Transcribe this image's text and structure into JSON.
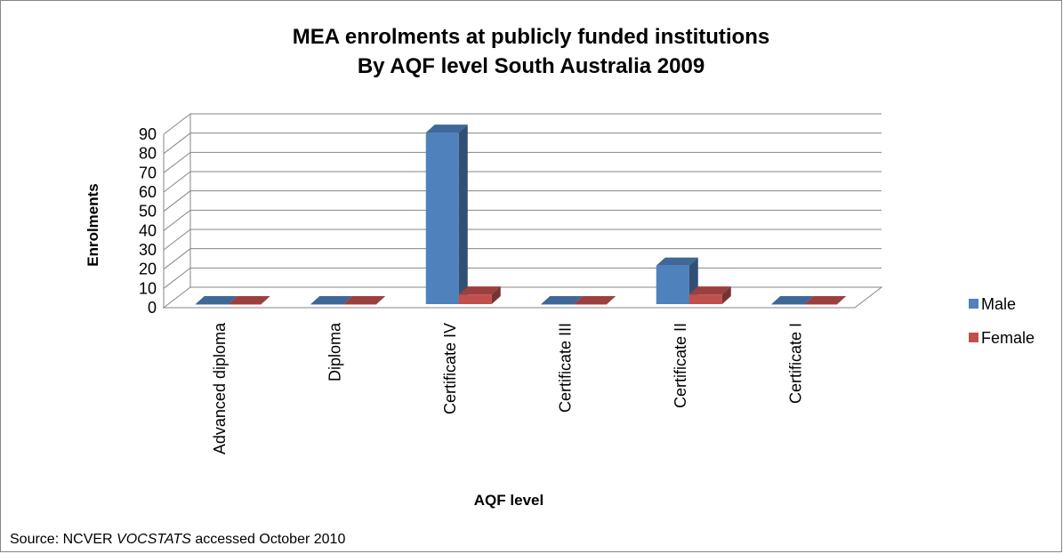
{
  "chart_data": {
    "type": "bar",
    "title_lines": [
      "MEA enrolments at publicly funded institutions",
      "By AQF level South Australia 2009"
    ],
    "xlabel": "AQF level",
    "ylabel": "Enrolments",
    "ylim": [
      0,
      90
    ],
    "yticks": [
      "0",
      "10",
      "20",
      "30",
      "40",
      "50",
      "60",
      "70",
      "80",
      "90"
    ],
    "categories": [
      "Advanced diploma",
      "Diploma",
      "Certificate IV",
      "Certificate III",
      "Certificate II",
      "Certificate I"
    ],
    "series": [
      {
        "name": "Male",
        "values": [
          0,
          0,
          89,
          0,
          20,
          0
        ],
        "color": "#4f81bd"
      },
      {
        "name": "Female",
        "values": [
          0,
          0,
          5,
          0,
          5,
          0
        ],
        "color": "#c0504d"
      }
    ],
    "grid": true,
    "legend_position": "right"
  },
  "source": {
    "prefix": "Source: NCVER ",
    "italic": "VOCSTATS",
    "suffix": " accessed October 2010"
  }
}
